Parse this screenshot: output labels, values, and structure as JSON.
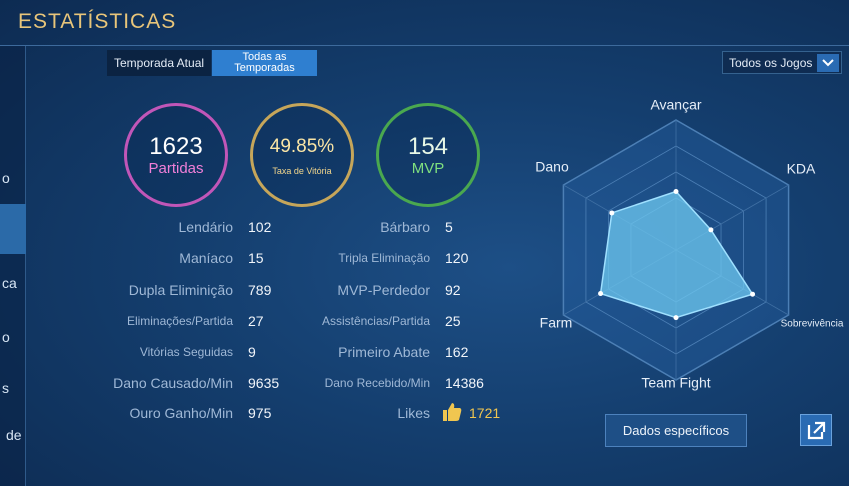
{
  "header": {
    "title": "ESTATÍSTICAS"
  },
  "tabs": [
    "Temporada Atual",
    "Todas as Temporadas"
  ],
  "filter": "Todos os Jogos",
  "sidebar": [
    "o",
    "ca",
    "o",
    "s",
    "de"
  ],
  "summary": [
    {
      "value": 1623,
      "label": "Partidas"
    },
    {
      "value": "49.85%",
      "label": "Taxa de Vitória"
    },
    {
      "value": 154,
      "label": "MVP"
    }
  ],
  "stats_left": [
    [
      "Lendário",
      102
    ],
    [
      "Maníaco",
      15
    ],
    [
      "Dupla Eliminição",
      789
    ],
    [
      "Eliminações/Partida",
      27
    ],
    [
      "Vitórias Seguidas",
      9
    ],
    [
      "Dano Causado/Min",
      9635
    ],
    [
      "Ouro Ganho/Min",
      975
    ]
  ],
  "stats_right": [
    [
      "Bárbaro",
      5
    ],
    [
      "Tripla Eliminação",
      120
    ],
    [
      "MVP-Perdedor",
      92
    ],
    [
      "Assistências/Partida",
      25
    ],
    [
      "Primeiro Abate",
      162
    ],
    [
      "Dano Recebido/Min",
      14386
    ],
    [
      "Likes",
      1721
    ]
  ],
  "chart_data": {
    "type": "radar",
    "categories": [
      "Avançar",
      "KDA",
      "Sobrevivência",
      "Team Fight",
      "Farm",
      "Dano"
    ],
    "values": [
      45,
      31,
      68,
      52,
      67,
      57
    ],
    "ylim": [
      0,
      100
    ]
  },
  "buttons": {
    "details": "Dados específicos"
  }
}
